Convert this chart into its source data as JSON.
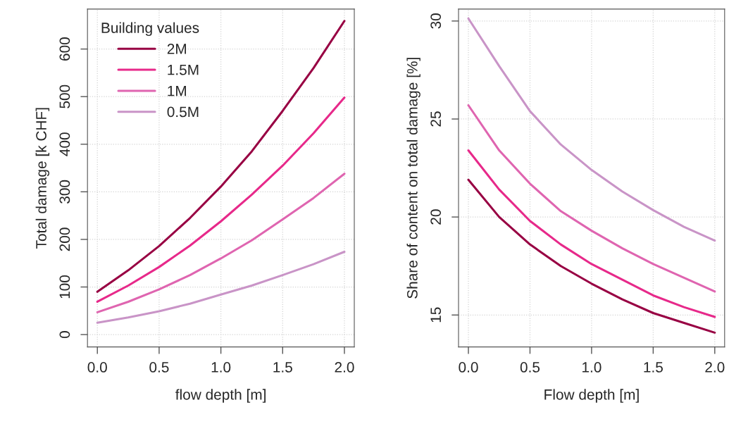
{
  "chart_data": [
    {
      "type": "line",
      "xlabel": "flow depth [m]",
      "ylabel": "Total damage [k CHF]",
      "legend_title": "Building values",
      "legend": "top left",
      "grid": true,
      "line_style": "solid",
      "x": [
        0,
        0.25,
        0.5,
        0.75,
        1,
        1.25,
        1.5,
        1.75,
        2
      ],
      "xlim": [
        -0.08,
        2.08
      ],
      "xticks": [
        {
          "value": 0,
          "label": "0.0"
        },
        {
          "value": 0.5,
          "label": "0.5"
        },
        {
          "value": 1,
          "label": "1.0"
        },
        {
          "value": 1.5,
          "label": "1.5"
        },
        {
          "value": 2,
          "label": "2.0"
        }
      ],
      "ylim": [
        -26,
        684
      ],
      "yticks": [
        0,
        100,
        200,
        300,
        400,
        500,
        600
      ],
      "series": [
        {
          "name": "2M",
          "color": "#980043",
          "values": [
            90,
            135,
            186,
            245,
            311,
            385,
            470,
            560,
            659
          ]
        },
        {
          "name": "1.5M",
          "color": "#e7298a",
          "values": [
            69,
            103,
            142,
            187,
            238,
            294,
            355,
            423,
            498
          ]
        },
        {
          "name": "1M",
          "color": "#df65b0",
          "values": [
            47,
            69,
            95,
            125,
            160,
            198,
            242,
            287,
            338
          ]
        },
        {
          "name": "0.5M",
          "color": "#c994c7",
          "values": [
            25,
            36,
            49,
            65,
            84,
            103,
            125,
            148,
            174
          ]
        }
      ]
    },
    {
      "type": "line",
      "xlabel": "Flow depth [m]",
      "ylabel": "Share of content on total damage [%]",
      "grid": true,
      "line_style": "solid",
      "x": [
        0,
        0.25,
        0.5,
        0.75,
        1,
        1.25,
        1.5,
        1.75,
        2
      ],
      "xlim": [
        -0.08,
        2.08
      ],
      "xticks": [
        {
          "value": 0,
          "label": "0.0"
        },
        {
          "value": 0.5,
          "label": "0.5"
        },
        {
          "value": 1,
          "label": "1.0"
        },
        {
          "value": 1.5,
          "label": "1.5"
        },
        {
          "value": 2,
          "label": "2.0"
        }
      ],
      "ylim": [
        13.37,
        30.61
      ],
      "yticks": [
        15,
        20,
        25,
        30
      ],
      "series": [
        {
          "color": "#980043",
          "values": [
            21.9,
            20.0,
            18.6,
            17.5,
            16.6,
            15.8,
            15.1,
            14.6,
            14.1
          ]
        },
        {
          "color": "#e7298a",
          "values": [
            23.4,
            21.4,
            19.8,
            18.6,
            17.6,
            16.8,
            16.0,
            15.4,
            14.9
          ]
        },
        {
          "color": "#df65b0",
          "values": [
            25.7,
            23.4,
            21.7,
            20.3,
            19.3,
            18.4,
            17.6,
            16.9,
            16.2
          ]
        },
        {
          "color": "#c994c7",
          "values": [
            30.13,
            27.7,
            25.4,
            23.7,
            22.4,
            21.3,
            20.35,
            19.5,
            18.8
          ]
        }
      ]
    }
  ]
}
